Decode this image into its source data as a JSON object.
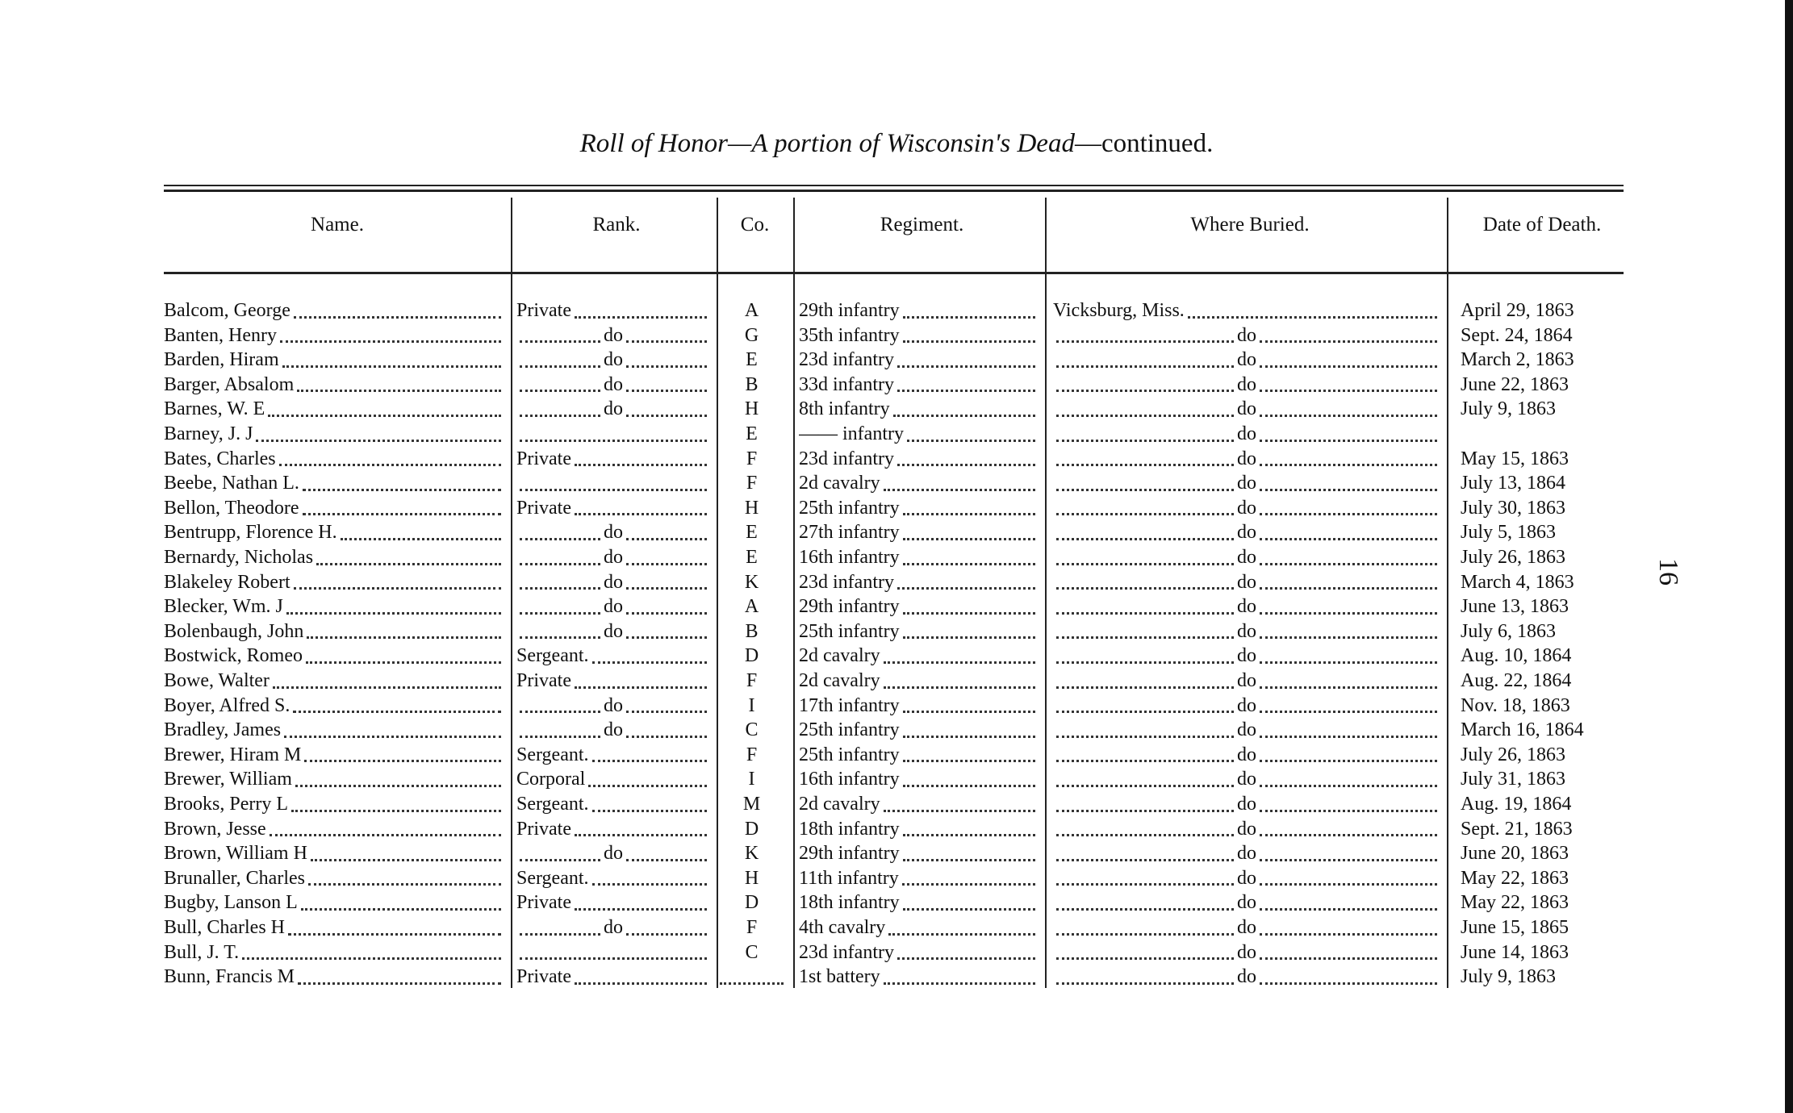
{
  "title": {
    "italic": "Roll of Honor—A portion of Wisconsin's Dead",
    "plain": "—continued."
  },
  "page_number": "16",
  "header": {
    "columns": [
      "Name.",
      "Rank.",
      "Co.",
      "Regiment.",
      "Where Buried.",
      "Date of Death."
    ]
  },
  "table": {
    "rows": [
      {
        "name": "Balcom, George",
        "rank": "Private",
        "co": "A",
        "regiment": "29th infantry",
        "buried": "Vicksburg, Miss.",
        "date": "April 29, 1863"
      },
      {
        "name": "Banten, Henry",
        "rank": "do",
        "co": "G",
        "regiment": "35th infantry",
        "buried": "do",
        "date": "Sept. 24, 1864"
      },
      {
        "name": "Barden, Hiram",
        "rank": "do",
        "co": "E",
        "regiment": "23d infantry",
        "buried": "do",
        "date": "March 2, 1863"
      },
      {
        "name": "Barger, Absalom",
        "rank": "do",
        "co": "B",
        "regiment": "33d infantry",
        "buried": "do",
        "date": "June 22, 1863"
      },
      {
        "name": "Barnes, W. E",
        "rank": "do",
        "co": "H",
        "regiment": "8th infantry",
        "buried": "do",
        "date": "July 9, 1863"
      },
      {
        "name": "Barney, J. J",
        "co": "E",
        "regiment": "—— infantry",
        "buried": "do"
      },
      {
        "name": "Bates, Charles",
        "rank": "Private",
        "co": "F",
        "regiment": "23d infantry",
        "buried": "do",
        "date": "May 15, 1863"
      },
      {
        "name": "Beebe, Nathan L.",
        "co": "F",
        "regiment": "2d cavalry",
        "buried": "do",
        "date": "July 13, 1864"
      },
      {
        "name": "Bellon, Theodore",
        "rank": "Private",
        "co": "H",
        "regiment": "25th infantry",
        "buried": "do",
        "date": "July 30, 1863"
      },
      {
        "name": "Bentrupp, Florence H.",
        "rank": "do",
        "co": "E",
        "regiment": "27th infantry",
        "buried": "do",
        "date": "July 5, 1863"
      },
      {
        "name": "Bernardy, Nicholas",
        "rank": "do",
        "co": "E",
        "regiment": "16th infantry",
        "buried": "do",
        "date": "July 26, 1863"
      },
      {
        "name": "Blakeley Robert",
        "rank": "do",
        "co": "K",
        "regiment": "23d infantry",
        "buried": "do",
        "date": "March 4, 1863"
      },
      {
        "name": "Blecker, Wm. J",
        "rank": "do",
        "co": "A",
        "regiment": "29th infantry",
        "buried": "do",
        "date": "June 13, 1863"
      },
      {
        "name": "Bolenbaugh, John",
        "rank": "do",
        "co": "B",
        "regiment": "25th infantry",
        "buried": "do",
        "date": "July 6, 1863"
      },
      {
        "name": "Bostwick, Romeo",
        "rank": "Sergeant.",
        "co": "D",
        "regiment": "2d cavalry",
        "buried": "do",
        "date": "Aug. 10, 1864"
      },
      {
        "name": "Bowe, Walter",
        "rank": "Private",
        "co": "F",
        "regiment": "2d cavalry",
        "buried": "do",
        "date": "Aug. 22, 1864"
      },
      {
        "name": "Boyer, Alfred S.",
        "rank": "do",
        "co": "I",
        "regiment": "17th infantry",
        "buried": "do",
        "date": "Nov. 18, 1863"
      },
      {
        "name": "Bradley, James",
        "rank": "do",
        "co": "C",
        "regiment": "25th infantry",
        "buried": "do",
        "date": "March 16, 1864"
      },
      {
        "name": "Brewer, Hiram M",
        "rank": "Sergeant.",
        "co": "F",
        "regiment": "25th infantry",
        "buried": "do",
        "date": "July 26, 1863"
      },
      {
        "name": "Brewer, William",
        "rank": "Corporal",
        "co": "I",
        "regiment": "16th infantry",
        "buried": "do",
        "date": "July 31, 1863"
      },
      {
        "name": "Brooks, Perry L",
        "rank": "Sergeant.",
        "co": "M",
        "regiment": "2d cavalry",
        "buried": "do",
        "date": "Aug. 19, 1864"
      },
      {
        "name": "Brown, Jesse",
        "rank": "Private",
        "co": "D",
        "regiment": "18th infantry",
        "buried": "do",
        "date": "Sept. 21, 1863"
      },
      {
        "name": "Brown, William H",
        "rank": "do",
        "co": "K",
        "regiment": "29th infantry",
        "buried": "do",
        "date": "June 20, 1863"
      },
      {
        "name": "Brunaller, Charles",
        "rank": "Sergeant.",
        "co": "H",
        "regiment": "11th infantry",
        "buried": "do",
        "date": "May 22, 1863"
      },
      {
        "name": "Bugby, Lanson L",
        "rank": "Private",
        "co": "D",
        "regiment": "18th infantry",
        "buried": "do",
        "date": "May 22, 1863"
      },
      {
        "name": "Bull, Charles H",
        "rank": "do",
        "co": "F",
        "regiment": "4th cavalry",
        "buried": "do",
        "date": "June 15, 1865"
      },
      {
        "name": "Bull, J. T.",
        "co": "C",
        "regiment": "23d infantry",
        "buried": "do",
        "date": "June 14, 1863"
      },
      {
        "name": "Bunn, Francis M",
        "rank": "Private",
        "regiment": "1st battery",
        "buried": "do",
        "date": "July 9, 1863"
      }
    ]
  }
}
